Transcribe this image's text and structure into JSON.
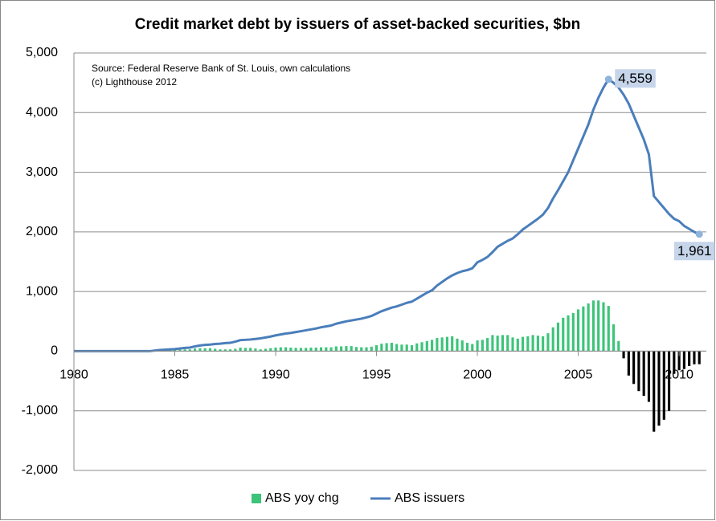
{
  "chart_data": {
    "type": "bar-line",
    "title": "Credit market debt by issuers of asset-backed securities, $bn",
    "notes": [
      "Source: Federal Reserve Bank of St. Louis, own calculations",
      "(c) Lighthouse 2012"
    ],
    "x": [
      1980,
      1980.25,
      1980.5,
      1980.75,
      1981,
      1981.25,
      1981.5,
      1981.75,
      1982,
      1982.25,
      1982.5,
      1982.75,
      1983,
      1983.25,
      1983.5,
      1983.75,
      1984,
      1984.25,
      1984.5,
      1984.75,
      1985,
      1985.25,
      1985.5,
      1985.75,
      1986,
      1986.25,
      1986.5,
      1986.75,
      1987,
      1987.25,
      1987.5,
      1987.75,
      1988,
      1988.25,
      1988.5,
      1988.75,
      1989,
      1989.25,
      1989.5,
      1989.75,
      1990,
      1990.25,
      1990.5,
      1990.75,
      1991,
      1991.25,
      1991.5,
      1991.75,
      1992,
      1992.25,
      1992.5,
      1992.75,
      1993,
      1993.25,
      1993.5,
      1993.75,
      1994,
      1994.25,
      1994.5,
      1994.75,
      1995,
      1995.25,
      1995.5,
      1995.75,
      1996,
      1996.25,
      1996.5,
      1996.75,
      1997,
      1997.25,
      1997.5,
      1997.75,
      1998,
      1998.25,
      1998.5,
      1998.75,
      1999,
      1999.25,
      1999.5,
      1999.75,
      2000,
      2000.25,
      2000.5,
      2000.75,
      2001,
      2001.25,
      2001.5,
      2001.75,
      2002,
      2002.25,
      2002.5,
      2002.75,
      2003,
      2003.25,
      2003.5,
      2003.75,
      2004,
      2004.25,
      2004.5,
      2004.75,
      2005,
      2005.25,
      2005.5,
      2005.75,
      2006,
      2006.25,
      2006.5,
      2006.75,
      2007,
      2007.25,
      2007.5,
      2007.75,
      2008,
      2008.25,
      2008.5,
      2008.75,
      2009,
      2009.25,
      2009.5,
      2009.75,
      2010,
      2010.25,
      2010.5,
      2010.75,
      2011
    ],
    "series": [
      {
        "name": "ABS yoy chg",
        "kind": "bar",
        "color": "#3cc47a",
        "negative_color": "#000000",
        "values": [
          null,
          null,
          null,
          null,
          0,
          0,
          0,
          0,
          0,
          0,
          0,
          0,
          0,
          0,
          0,
          0,
          10,
          20,
          25,
          30,
          25,
          25,
          30,
          30,
          45,
          50,
          50,
          50,
          40,
          30,
          30,
          30,
          40,
          60,
          55,
          55,
          45,
          30,
          40,
          50,
          60,
          65,
          65,
          60,
          55,
          55,
          55,
          60,
          60,
          65,
          65,
          65,
          80,
          80,
          85,
          85,
          70,
          65,
          65,
          75,
          100,
          125,
          135,
          140,
          120,
          110,
          110,
          100,
          130,
          150,
          170,
          190,
          220,
          230,
          240,
          250,
          210,
          180,
          140,
          120,
          180,
          190,
          220,
          270,
          260,
          270,
          270,
          230,
          210,
          240,
          250,
          270,
          260,
          250,
          300,
          400,
          480,
          560,
          600,
          640,
          700,
          750,
          800,
          850,
          850,
          820,
          759,
          450,
          170,
          -120,
          -409,
          -550,
          -670,
          -750,
          -850,
          -1350,
          -1250,
          -1150,
          -1000,
          -380,
          -320,
          -300,
          -250,
          -220,
          -219
        ]
      },
      {
        "name": "ABS issuers",
        "kind": "line",
        "color": "#4a7ebb",
        "values": [
          0,
          0,
          0,
          0,
          0,
          0,
          0,
          0,
          0,
          0,
          0,
          0,
          0,
          0,
          0,
          0,
          10,
          20,
          25,
          30,
          35,
          45,
          55,
          60,
          80,
          95,
          105,
          110,
          120,
          125,
          135,
          140,
          160,
          185,
          190,
          195,
          205,
          215,
          230,
          245,
          265,
          280,
          295,
          305,
          320,
          335,
          350,
          365,
          380,
          400,
          415,
          430,
          460,
          480,
          500,
          515,
          530,
          545,
          565,
          590,
          630,
          670,
          700,
          730,
          750,
          780,
          810,
          830,
          880,
          930,
          980,
          1020,
          1100,
          1160,
          1220,
          1270,
          1310,
          1340,
          1360,
          1390,
          1490,
          1530,
          1580,
          1660,
          1750,
          1800,
          1850,
          1890,
          1960,
          2040,
          2100,
          2160,
          2220,
          2290,
          2400,
          2560,
          2700,
          2850,
          3000,
          3200,
          3400,
          3600,
          3800,
          4050,
          4250,
          4420,
          4559,
          4500,
          4420,
          4300,
          4150,
          3950,
          3750,
          3550,
          3300,
          2600,
          2500,
          2400,
          2300,
          2220,
          2180,
          2100,
          2050,
          2000,
          1961
        ],
        "value_labels": [
          null,
          null,
          null,
          null,
          null,
          null,
          null,
          null,
          null,
          null,
          null,
          null,
          null,
          null,
          null,
          null,
          null,
          null,
          null,
          null,
          null,
          null,
          null,
          null,
          null,
          null,
          null,
          null,
          null,
          null,
          null,
          null,
          null,
          null,
          null,
          null,
          null,
          null,
          null,
          null,
          null,
          null,
          null,
          null,
          null,
          null,
          null,
          null,
          null,
          null,
          null,
          null,
          null,
          null,
          null,
          null,
          null,
          null,
          null,
          null,
          null,
          null,
          null,
          null,
          null,
          null,
          null,
          null,
          null,
          null,
          null,
          null,
          null,
          null,
          null,
          null,
          null,
          null,
          null,
          null,
          null,
          null,
          null,
          null,
          null,
          null,
          null,
          null,
          null,
          null,
          null,
          null,
          null,
          null,
          null,
          null,
          null,
          null,
          null,
          null,
          null,
          null,
          null,
          null,
          null,
          null,
          "4,559",
          null,
          null,
          null,
          null,
          null,
          null,
          null,
          null,
          null,
          null,
          null,
          null,
          null,
          null,
          null,
          null,
          null,
          "1,961"
        ]
      }
    ],
    "xlim": [
      1980,
      2011.35
    ],
    "xticks": [
      1980,
      1985,
      1990,
      1995,
      2000,
      2005,
      2010
    ],
    "ylim": [
      -2000,
      5000
    ],
    "yticks": [
      {
        "value": -2000,
        "label": "-2,000"
      },
      {
        "value": -1000,
        "label": "-1,000"
      },
      0,
      {
        "value": 1000,
        "label": "1,000"
      },
      {
        "value": 2000,
        "label": "2,000"
      },
      {
        "value": 3000,
        "label": "3,000"
      },
      {
        "value": 4000,
        "label": "4,000"
      },
      {
        "value": 5000,
        "label": "5,000"
      }
    ],
    "grid": true,
    "legend": "bottom"
  }
}
